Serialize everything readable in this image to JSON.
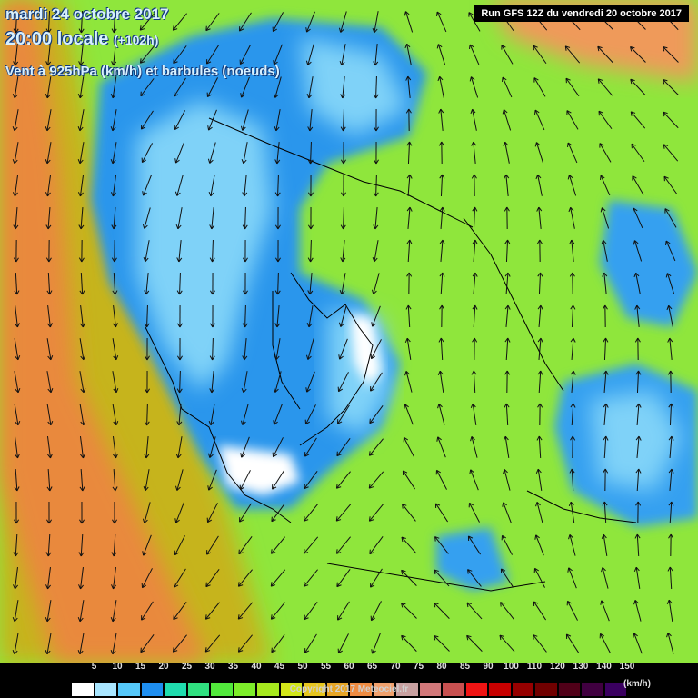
{
  "title": {
    "date": "mardi 24 octobre 2017",
    "time": "20:00 locale",
    "hint": "(+102h)",
    "parameter": "Vent à 925hPa (km/h) et barbules (noeuds)"
  },
  "run_label": "Run GFS 12Z du vendredi 20 octobre 2017",
  "legend": {
    "values": [
      "5",
      "10",
      "15",
      "20",
      "25",
      "30",
      "35",
      "40",
      "45",
      "50",
      "55",
      "60",
      "65",
      "70",
      "75",
      "80",
      "85",
      "90",
      "100",
      "110",
      "120",
      "130",
      "140",
      "150"
    ],
    "colors": [
      "#ffffff",
      "#a9e6ff",
      "#55c8fa",
      "#1e8ef0",
      "#20dcae",
      "#30e080",
      "#52e83c",
      "#7ded2a",
      "#a6e81e",
      "#d2e619",
      "#e6c51e",
      "#e6a526",
      "#ef8c42",
      "#f0a06c",
      "#c8a0a0",
      "#d2787a",
      "#c85050",
      "#f01414",
      "#c80000",
      "#960000",
      "#700000",
      "#500018",
      "#400040",
      "#3a0060"
    ],
    "unit": "(km/h)"
  },
  "copyright": "Copyright 2017 Meteociel.fr",
  "map": {
    "background_color": "#8fe63c",
    "regions": [
      {
        "name": "west-orange-band",
        "color": "#e9893c"
      },
      {
        "name": "west-olive-band",
        "color": "#c6b41e"
      },
      {
        "name": "balkans-blue",
        "color": "#2a96ec"
      },
      {
        "name": "balkans-light-blue",
        "color": "#7fd2f8"
      },
      {
        "name": "aegean-white",
        "color": "#ffffff"
      },
      {
        "name": "east-blue-patch",
        "color": "#36a0f0"
      },
      {
        "name": "northeast-orange",
        "color": "#ef9a5a"
      }
    ],
    "coast_color": "#000000",
    "arrow_color": "#111111"
  }
}
